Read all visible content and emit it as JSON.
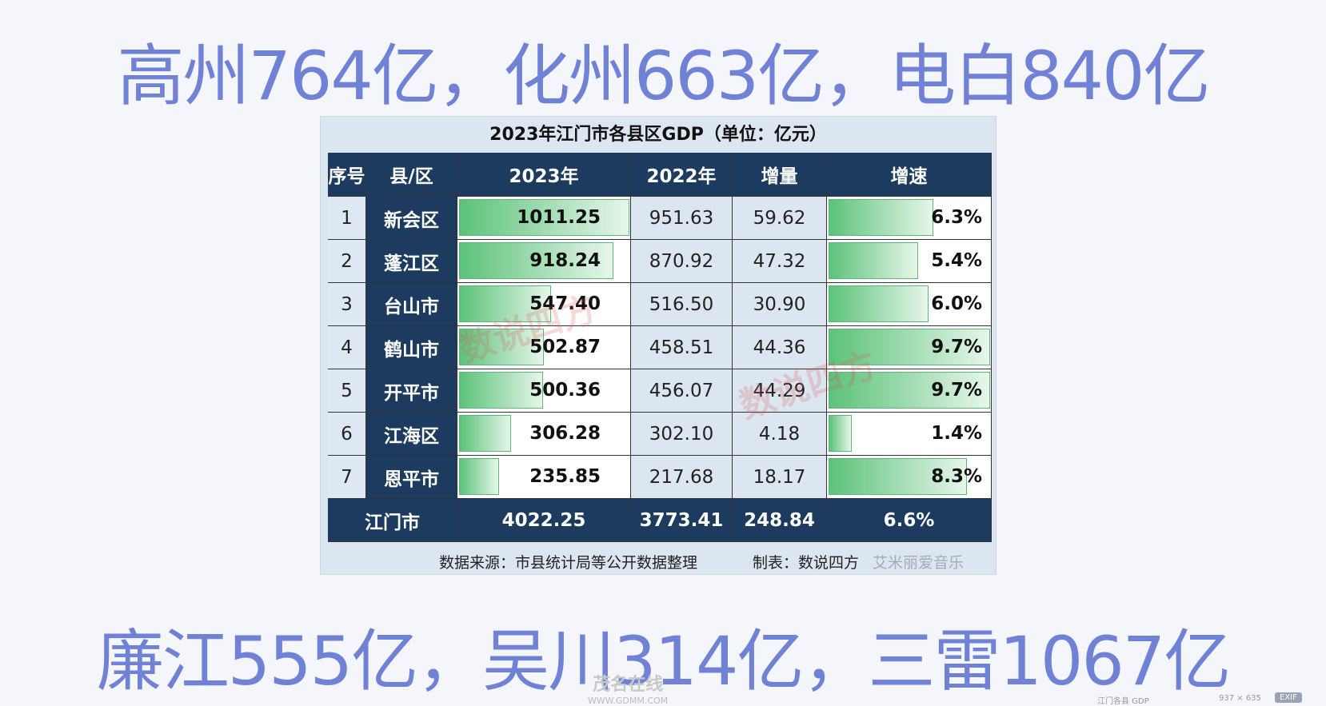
{
  "header": {
    "title": "高州764亿，化州663亿，电白840亿"
  },
  "table": {
    "title": "2023年江门市各县区GDP（单位：亿元）",
    "columns": [
      "序号",
      "县/区",
      "2023年",
      "2022年",
      "增量",
      "增速"
    ],
    "rows": [
      [
        "1",
        "新会区",
        "1011.25",
        "951.63",
        "59.62",
        "6.3%"
      ],
      [
        "2",
        "蓬江区",
        "918.24",
        "870.92",
        "47.32",
        "5.4%"
      ],
      [
        "3",
        "台山市",
        "547.40",
        "516.50",
        "30.90",
        "6.0%"
      ],
      [
        "4",
        "鹤山市",
        "502.87",
        "458.51",
        "44.36",
        "9.7%"
      ],
      [
        "5",
        "开平市",
        "500.36",
        "456.07",
        "44.29",
        "9.7%"
      ],
      [
        "6",
        "江海区",
        "306.28",
        "302.10",
        "4.18",
        "1.4%"
      ],
      [
        "7",
        "恩平市",
        "235.85",
        "217.68",
        "18.17",
        "8.3%"
      ]
    ],
    "total": [
      "江门市",
      "4022.25",
      "3773.41",
      "248.84",
      "6.6%"
    ],
    "source": "数据来源：市县统计局等公开数据整理",
    "maker": "制表：数说四方",
    "watermark": "数说四方",
    "overlay": "艾米丽爱音乐"
  },
  "footer": {
    "title": "廉江555亿，吴川314亿，三雷1067亿"
  },
  "logo": {
    "name": "茂名在线",
    "url": "WWW.GDMM.COM"
  },
  "viewer": {
    "filename": "江门各县 GDP",
    "size": "937 × 635",
    "badge": "EXIF"
  }
}
